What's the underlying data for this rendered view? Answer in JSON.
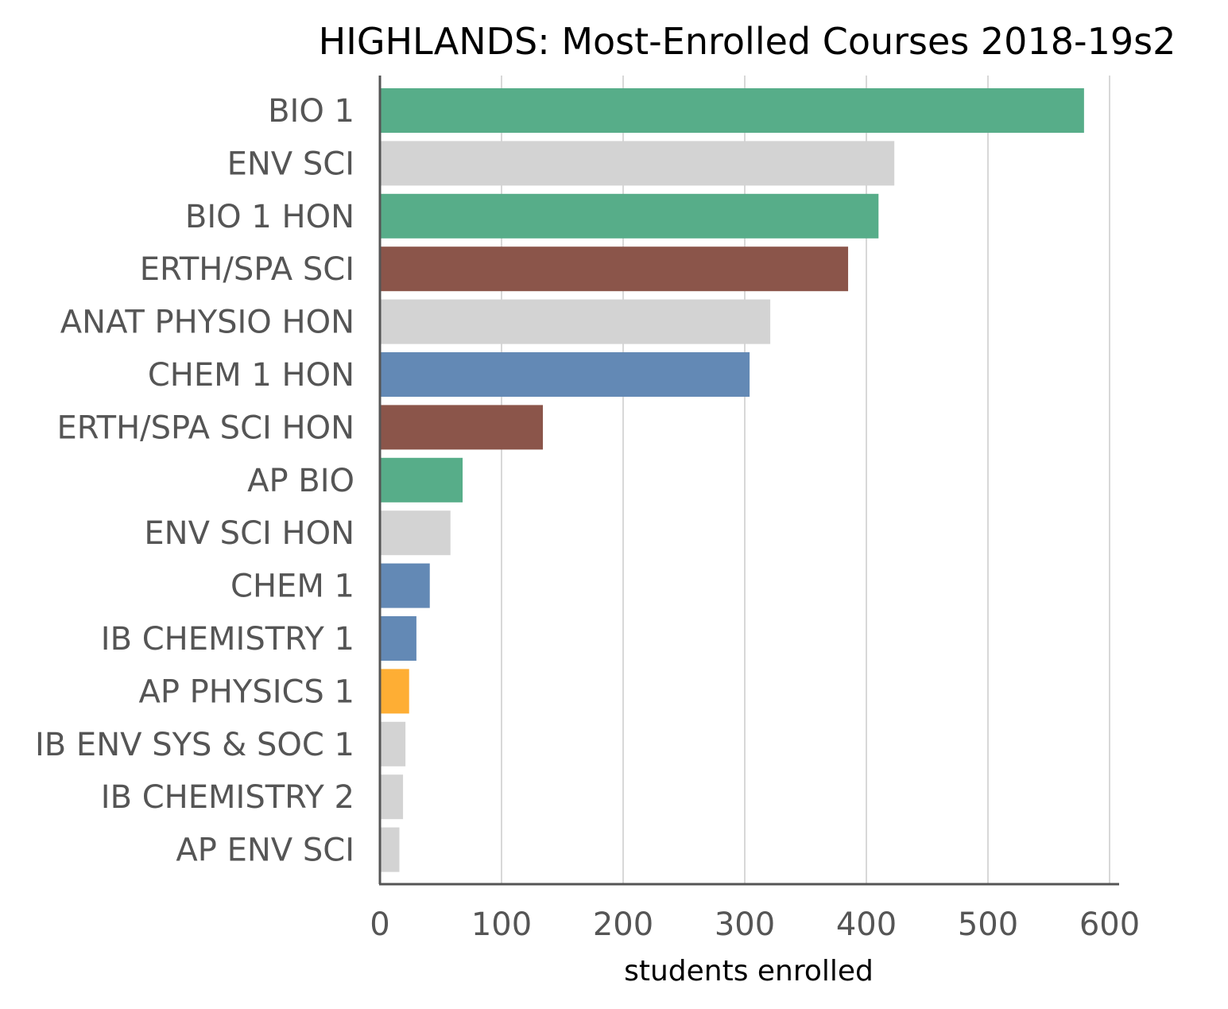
{
  "chart_data": {
    "type": "bar",
    "orientation": "horizontal",
    "title": "HIGHLANDS: Most-Enrolled Courses 2018-19s2",
    "xlabel": "students enrolled",
    "ylabel": "",
    "xlim": [
      0,
      610
    ],
    "xticks": [
      0,
      100,
      200,
      300,
      400,
      500,
      600
    ],
    "xtick_labels": [
      "0",
      "100",
      "200",
      "300",
      "400",
      "500",
      "600"
    ],
    "grid": "vertical",
    "legend": "none",
    "categories": [
      "BIO 1",
      "ENV SCI",
      "BIO 1 HON",
      "ERTH/SPA SCI",
      "ANAT PHYSIO HON",
      "CHEM 1 HON",
      "ERTH/SPA SCI HON",
      "AP BIO",
      "ENV SCI HON",
      "CHEM 1",
      "IB CHEMISTRY 1",
      "AP PHYSICS 1",
      "IB ENV SYS & SOC 1",
      "IB CHEMISTRY 2",
      "AP ENV SCI"
    ],
    "values": [
      579,
      423,
      410,
      385,
      321,
      304,
      134,
      68,
      58,
      41,
      30,
      24,
      21,
      19,
      16
    ],
    "colors": [
      "#57ad89",
      "#d3d3d3",
      "#57ad89",
      "#8b554a",
      "#d3d3d3",
      "#6389b5",
      "#8b554a",
      "#57ad89",
      "#d3d3d3",
      "#6389b5",
      "#6389b5",
      "#feae34",
      "#d3d3d3",
      "#d3d3d3",
      "#d3d3d3"
    ]
  }
}
